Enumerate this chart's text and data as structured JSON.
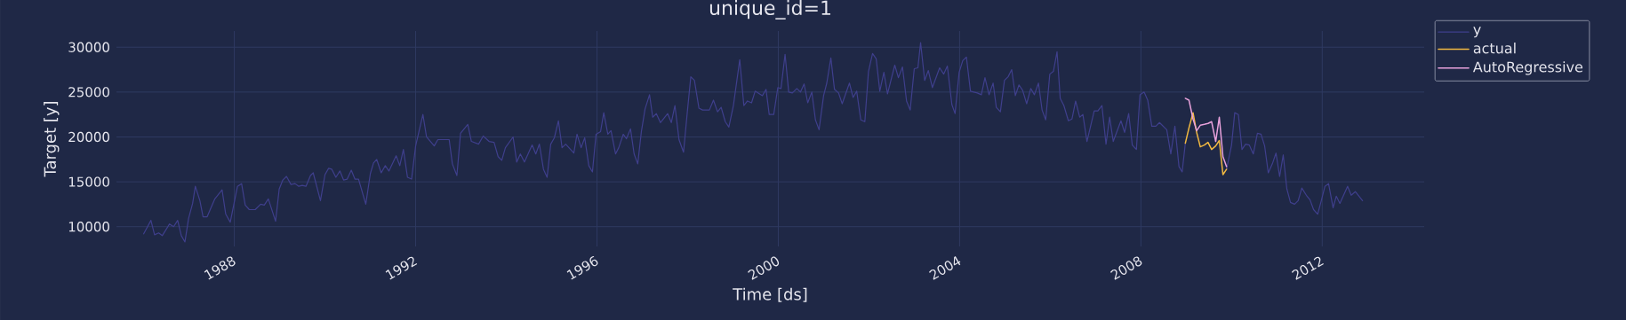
{
  "chart_data": {
    "type": "line",
    "title": "unique_id=1",
    "xlabel": "Time [ds]",
    "ylabel": "Target [y]",
    "xlim": [
      1985.4,
      2014.25
    ],
    "ylim": [
      7800,
      31800
    ],
    "xticks": [
      1988,
      1992,
      1996,
      2000,
      2004,
      2008,
      2012
    ],
    "yticks": [
      10000,
      15000,
      20000,
      25000,
      30000
    ],
    "grid": true,
    "legend": "top right",
    "series": [
      {
        "name": "y",
        "color": "#3f3f8c",
        "x": [
          1986.0,
          1986.16,
          1986.24,
          1986.33,
          1986.41,
          1986.57,
          1986.66,
          1986.75,
          1986.83,
          1986.91,
          1986.99,
          1987.08,
          1987.14,
          1987.24,
          1987.31,
          1987.4,
          1987.57,
          1987.73,
          1987.81,
          1987.91,
          1988.07,
          1988.16,
          1988.24,
          1988.33,
          1988.46,
          1988.58,
          1988.66,
          1988.75,
          1988.91,
          1988.99,
          1989.07,
          1989.15,
          1989.25,
          1989.34,
          1989.42,
          1989.5,
          1989.58,
          1989.68,
          1989.74,
          1989.9,
          1990.0,
          1990.08,
          1990.15,
          1990.24,
          1990.33,
          1990.41,
          1990.49,
          1990.58,
          1990.66,
          1990.74,
          1990.9,
          1991.0,
          1991.07,
          1991.14,
          1991.24,
          1991.33,
          1991.41,
          1991.57,
          1991.65,
          1991.73,
          1991.82,
          1991.91,
          1992.0,
          1992.16,
          1992.24,
          1992.41,
          1992.49,
          1992.74,
          1992.81,
          1992.91,
          1992.99,
          1993.15,
          1993.23,
          1993.39,
          1993.49,
          1993.62,
          1993.73,
          1993.82,
          1993.9,
          1993.98,
          1994.15,
          1994.23,
          1994.31,
          1994.4,
          1994.57,
          1994.65,
          1994.73,
          1994.82,
          1994.9,
          1994.98,
          1995.06,
          1995.15,
          1995.23,
          1995.31,
          1995.49,
          1995.56,
          1995.65,
          1995.73,
          1995.82,
          1995.9,
          1995.98,
          1996.08,
          1996.15,
          1996.24,
          1996.31,
          1996.41,
          1996.48,
          1996.58,
          1996.65,
          1996.74,
          1996.82,
          1996.9,
          1996.98,
          1997.06,
          1997.16,
          1997.23,
          1997.31,
          1997.4,
          1997.56,
          1997.64,
          1997.72,
          1997.81,
          1997.91,
          1997.99,
          1998.07,
          1998.15,
          1998.25,
          1998.33,
          1998.48,
          1998.57,
          1998.66,
          1998.74,
          1998.83,
          1998.91,
          1999.01,
          1999.15,
          1999.24,
          1999.32,
          1999.41,
          1999.49,
          1999.65,
          1999.73,
          1999.8,
          1999.9,
          1999.99,
          2000.06,
          2000.15,
          2000.23,
          2000.31,
          2000.41,
          2000.49,
          2000.57,
          2000.65,
          2000.74,
          2000.82,
          2000.9,
          2001.0,
          2001.07,
          2001.16,
          2001.24,
          2001.33,
          2001.41,
          2001.57,
          2001.65,
          2001.73,
          2001.82,
          2001.91,
          2001.99,
          2002.08,
          2002.16,
          2002.24,
          2002.33,
          2002.41,
          2002.57,
          2002.65,
          2002.74,
          2002.83,
          2002.91,
          2003.0,
          2003.08,
          2003.14,
          2003.23,
          2003.31,
          2003.4,
          2003.56,
          2003.65,
          2003.73,
          2003.83,
          2003.9,
          2003.99,
          2004.07,
          2004.15,
          2004.24,
          2004.39,
          2004.48,
          2004.56,
          2004.65,
          2004.74,
          2004.81,
          2004.9,
          2004.99,
          2005.07,
          2005.15,
          2005.23,
          2005.31,
          2005.39,
          2005.48,
          2005.57,
          2005.65,
          2005.74,
          2005.82,
          2005.9,
          2005.99,
          2006.07,
          2006.15,
          2006.22,
          2006.3,
          2006.4,
          2006.48,
          2006.56,
          2006.65,
          2006.72,
          2006.81,
          2006.97,
          2007.05,
          2007.14,
          2007.23,
          2007.31,
          2007.39,
          2007.56,
          2007.64,
          2007.73,
          2007.81,
          2007.9,
          2007.98,
          2008.07,
          2008.15,
          2008.24,
          2008.33,
          2008.41,
          2008.57,
          2008.66,
          2008.75,
          2008.84,
          2008.91,
          2008.98,
          2009.06,
          2009.15,
          2009.23,
          2009.31,
          2009.4,
          2009.48,
          2009.56,
          2009.65,
          2009.73,
          2009.81,
          2009.89,
          2010.0,
          2010.07,
          2010.15,
          2010.23,
          2010.31,
          2010.39,
          2010.48,
          2010.57,
          2010.65,
          2010.73,
          2010.81,
          2010.9,
          2010.98,
          2011.06,
          2011.14,
          2011.22,
          2011.3,
          2011.39,
          2011.47,
          2011.55,
          2011.65,
          2011.73,
          2011.81,
          2011.9,
          2011.98,
          2012.06,
          2012.14,
          2012.24,
          2012.31,
          2012.39,
          2012.56,
          2012.64,
          2012.73,
          2012.89
        ],
        "values": [
          9200,
          10700,
          9100,
          9300,
          9000,
          10300,
          10000,
          10700,
          9000,
          8300,
          10900,
          12600,
          14500,
          12900,
          11100,
          11100,
          13100,
          14100,
          11400,
          10500,
          14500,
          14800,
          12400,
          11900,
          11900,
          12500,
          12400,
          13100,
          10600,
          14200,
          15200,
          15600,
          14700,
          14800,
          14500,
          14600,
          14500,
          15700,
          16000,
          12900,
          15800,
          16500,
          16400,
          15500,
          16200,
          15200,
          15300,
          16300,
          15300,
          15300,
          12500,
          15900,
          17100,
          17500,
          16000,
          16800,
          16200,
          17900,
          16800,
          18600,
          15500,
          15300,
          19000,
          22500,
          20000,
          19000,
          19700,
          19700,
          17000,
          15700,
          20400,
          21400,
          19500,
          19200,
          20100,
          19500,
          19400,
          17800,
          17400,
          18800,
          20000,
          17200,
          18100,
          17200,
          19100,
          18100,
          19200,
          16400,
          15500,
          19200,
          19900,
          21800,
          18800,
          19200,
          18200,
          20300,
          18800,
          19900,
          16800,
          16100,
          20300,
          20600,
          22700,
          20300,
          20700,
          18100,
          18800,
          20300,
          19800,
          20900,
          18100,
          17000,
          20600,
          23100,
          24700,
          22200,
          22600,
          21600,
          22600,
          21600,
          23500,
          19700,
          18300,
          22600,
          26700,
          26300,
          23200,
          23000,
          23000,
          24100,
          22800,
          23300,
          21700,
          21100,
          23500,
          28600,
          23500,
          24000,
          23800,
          25100,
          24600,
          25300,
          22500,
          22500,
          25500,
          25400,
          29200,
          25000,
          24900,
          25400,
          25000,
          25900,
          23800,
          25000,
          21900,
          20800,
          24600,
          26000,
          28800,
          25300,
          24900,
          23700,
          26000,
          24400,
          25100,
          21900,
          21700,
          27300,
          29300,
          28700,
          25100,
          27200,
          24800,
          28000,
          26600,
          27800,
          24000,
          23000,
          27600,
          27700,
          30500,
          26300,
          27400,
          25500,
          27700,
          27000,
          27900,
          23600,
          22600,
          27200,
          28500,
          28900,
          25100,
          24900,
          24700,
          26600,
          24700,
          26000,
          23300,
          22800,
          26300,
          26700,
          27500,
          24600,
          25800,
          25200,
          23700,
          25400,
          24700,
          26000,
          23000,
          21900,
          27000,
          27300,
          29500,
          24300,
          23500,
          21800,
          22000,
          24000,
          22200,
          22500,
          19500,
          22900,
          22900,
          23500,
          19200,
          22200,
          19500,
          21800,
          20500,
          22600,
          19100,
          18600,
          24700,
          25000,
          24100,
          21200,
          21200,
          21600,
          20800,
          18100,
          21200,
          16700,
          16100,
          19300,
          null,
          null,
          null,
          null,
          null,
          null,
          null,
          null,
          null,
          null,
          16400,
          19100,
          22700,
          22500,
          18600,
          19200,
          19100,
          18100,
          20400,
          20300,
          19000,
          16000,
          17000,
          18200,
          15600,
          18000,
          14200,
          12700,
          12500,
          12900,
          14300,
          13500,
          13000,
          11900,
          11400,
          12900,
          14500,
          14800,
          12100,
          13400,
          12600,
          14500,
          13500,
          13900,
          12900
        ]
      },
      {
        "name": "actual",
        "color": "#f2b941",
        "x": [
          2008.98,
          2009.06,
          2009.15,
          2009.23,
          2009.31,
          2009.4,
          2009.48,
          2009.56,
          2009.65,
          2009.73,
          2009.81,
          2009.89
        ],
        "values": [
          19300,
          21000,
          22700,
          20500,
          18900,
          19100,
          19400,
          18600,
          19000,
          19600,
          15800,
          16400
        ]
      },
      {
        "name": "AutoRegressive",
        "color": "#e9a2dc",
        "x": [
          2008.98,
          2009.06,
          2009.15,
          2009.23,
          2009.31,
          2009.4,
          2009.48,
          2009.56,
          2009.65,
          2009.73,
          2009.81,
          2009.89
        ],
        "values": [
          24300,
          24100,
          22000,
          20700,
          21300,
          21400,
          21500,
          21700,
          19500,
          22200,
          17800,
          16700
        ]
      }
    ]
  }
}
